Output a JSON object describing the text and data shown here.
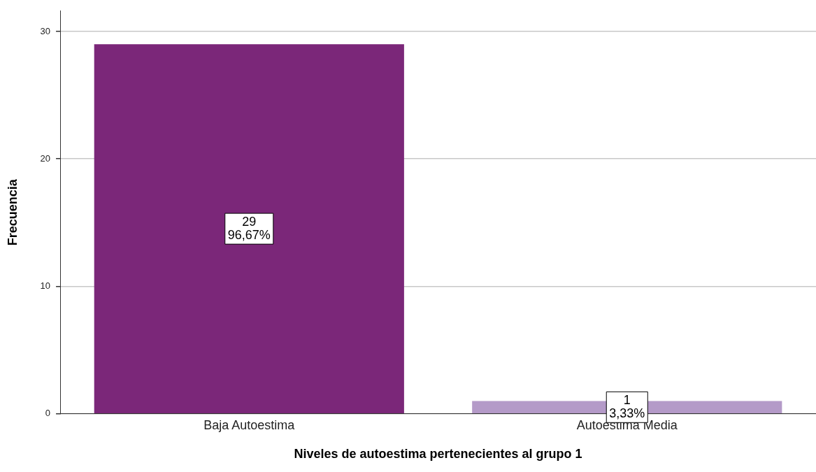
{
  "chart_data": {
    "type": "bar",
    "xlabel": "Niveles de autoestima pertenecientes al grupo 1",
    "ylabel": "Frecuencia",
    "categories": [
      "Baja Autoestima",
      "Autoestima Media"
    ],
    "values": [
      29,
      1
    ],
    "colors": [
      "#7b2779",
      "#b49ac8"
    ],
    "value_labels": [
      "29\n96,67%",
      "1\n3,33%"
    ],
    "ylim": [
      0,
      31.6
    ],
    "yticks": [
      0,
      10,
      20,
      30
    ],
    "grid": "y",
    "legend": false
  }
}
